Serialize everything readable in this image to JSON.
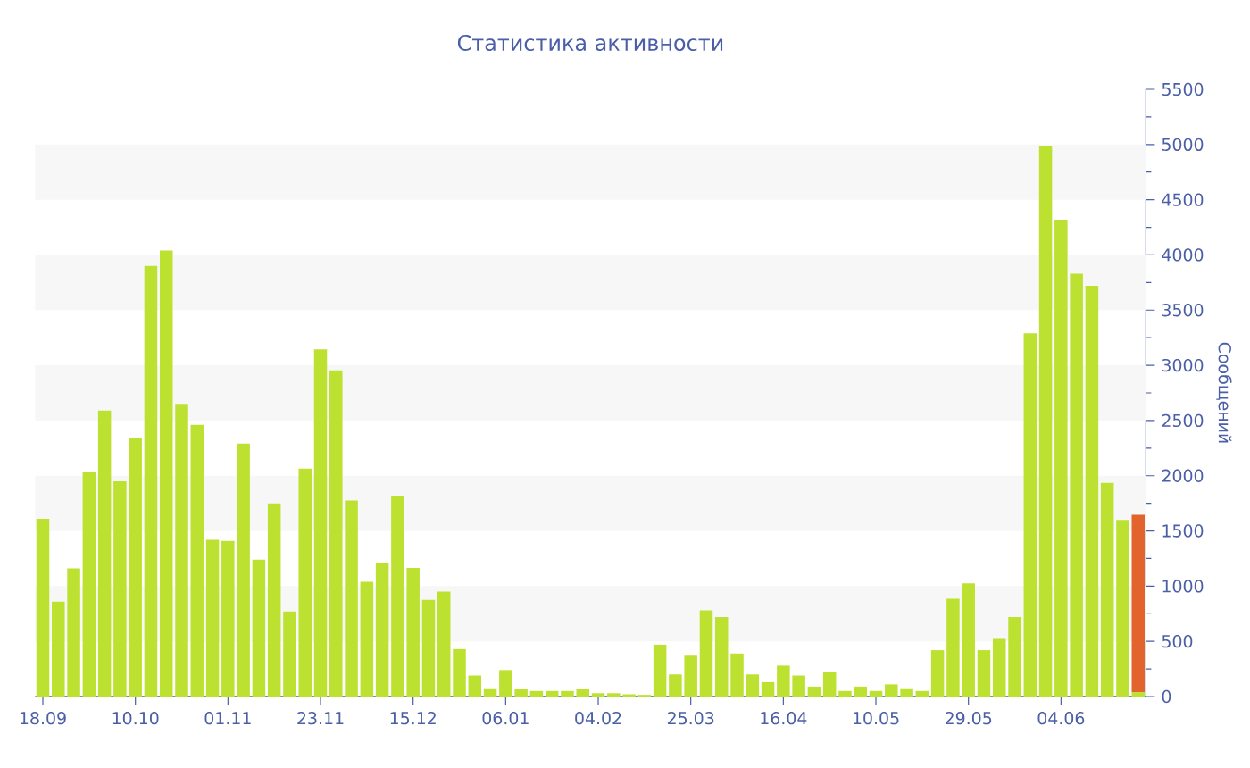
{
  "chart_data": {
    "type": "bar",
    "title": "Статистика активности",
    "ylabel": "Сообщений",
    "categories": [
      "18.09",
      null,
      null,
      null,
      null,
      null,
      "10.10",
      null,
      null,
      null,
      null,
      null,
      "01.11",
      null,
      null,
      null,
      null,
      null,
      "23.11",
      null,
      null,
      null,
      null,
      null,
      "15.12",
      null,
      null,
      null,
      null,
      null,
      "06.01",
      null,
      null,
      null,
      null,
      null,
      "04.02",
      null,
      null,
      null,
      null,
      null,
      "25.03",
      null,
      null,
      null,
      null,
      null,
      "16.04",
      null,
      null,
      null,
      null,
      null,
      "10.05",
      null,
      null,
      null,
      null,
      null,
      "29.05",
      null,
      null,
      null,
      null,
      null,
      "04.06",
      null,
      null,
      null,
      null,
      null
    ],
    "series": [
      {
        "color": "#bce130",
        "values": [
          1610,
          860,
          1160,
          2030,
          2590,
          1950,
          2340,
          3900,
          4040,
          2650,
          2460,
          1420,
          1410,
          2290,
          1240,
          1750,
          770,
          2065,
          3145,
          2955,
          1775,
          1040,
          1210,
          1820,
          1165,
          875,
          950,
          430,
          190,
          75,
          240,
          70,
          50,
          50,
          50,
          70,
          30,
          30,
          20,
          15,
          470,
          200,
          370,
          780,
          720,
          390,
          200,
          130,
          280,
          190,
          90,
          220,
          50,
          90,
          50,
          110,
          75,
          50,
          420,
          885,
          1025,
          420,
          530,
          720,
          3290,
          4990,
          4320,
          3830,
          3720,
          1935,
          1600,
          40
        ]
      },
      {
        "color": "#e3632d",
        "values": [
          null,
          null,
          null,
          null,
          null,
          null,
          null,
          null,
          null,
          null,
          null,
          null,
          null,
          null,
          null,
          null,
          null,
          null,
          null,
          null,
          null,
          null,
          null,
          null,
          null,
          null,
          null,
          null,
          null,
          null,
          null,
          null,
          null,
          null,
          null,
          null,
          null,
          null,
          null,
          null,
          null,
          null,
          null,
          null,
          null,
          null,
          null,
          null,
          null,
          null,
          null,
          null,
          null,
          null,
          null,
          null,
          null,
          null,
          null,
          null,
          null,
          null,
          null,
          null,
          null,
          null,
          null,
          null,
          null,
          null,
          null,
          1605
        ]
      }
    ],
    "stacked": true,
    "ylim": [
      0,
      5500
    ],
    "yticks": [
      0,
      500,
      1000,
      1500,
      2000,
      2500,
      3000,
      3500,
      4000,
      4500,
      5000,
      5500
    ],
    "bands": [
      {
        "axis": "y",
        "from": 500,
        "to": 1000,
        "color": "#f7f7f7"
      },
      {
        "axis": "y",
        "from": 1500,
        "to": 2000,
        "color": "#f7f7f7"
      },
      {
        "axis": "y",
        "from": 2500,
        "to": 3000,
        "color": "#f7f7f7"
      },
      {
        "axis": "y",
        "from": 3500,
        "to": 4000,
        "color": "#f7f7f7"
      },
      {
        "axis": "y",
        "from": 4500,
        "to": 5000,
        "color": "#f7f7f7"
      }
    ]
  }
}
